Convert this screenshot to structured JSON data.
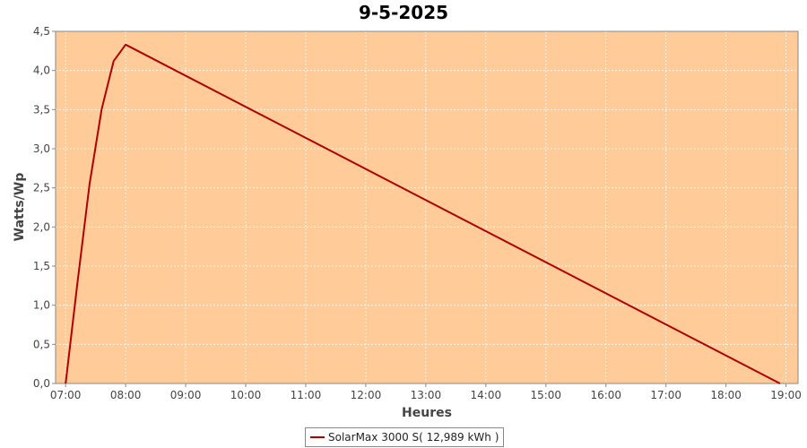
{
  "chart_data": {
    "type": "line",
    "title": "9-5-2025",
    "xlabel": "Heures",
    "ylabel": "Watts/Wp",
    "x_ticks": [
      "07:00",
      "08:00",
      "09:00",
      "10:00",
      "11:00",
      "12:00",
      "13:00",
      "14:00",
      "15:00",
      "16:00",
      "17:00",
      "18:00",
      "19:00"
    ],
    "y_ticks": [
      "0,0",
      "0,5",
      "1,0",
      "1,5",
      "2,0",
      "2,5",
      "3,0",
      "3,5",
      "4,0",
      "4,5"
    ],
    "xlim": [
      "06:50",
      "19:12"
    ],
    "ylim": [
      0,
      4.5
    ],
    "grid": true,
    "legend_position": "bottom",
    "plot_background": "#FFCC99",
    "series": [
      {
        "name": "SolarMax 3000 S( 12,989 kWh )",
        "color": "#B00000",
        "points": [
          {
            "x": "07:00",
            "y": 0.0
          },
          {
            "x": "07:12",
            "y": 1.3
          },
          {
            "x": "07:24",
            "y": 2.55
          },
          {
            "x": "07:36",
            "y": 3.5
          },
          {
            "x": "07:48",
            "y": 4.12
          },
          {
            "x": "08:00",
            "y": 4.33
          },
          {
            "x": "18:54",
            "y": 0.0
          }
        ]
      }
    ]
  }
}
